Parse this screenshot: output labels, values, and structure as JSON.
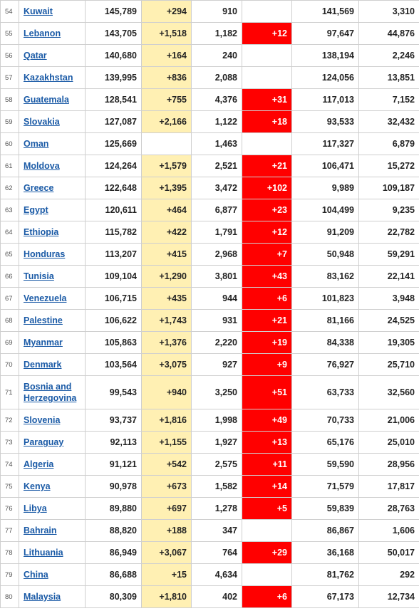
{
  "table": {
    "rows": [
      {
        "num": "54",
        "country": "Kuwait",
        "total": "145,789",
        "new_cases": "+294",
        "deaths": "910",
        "new_deaths": "",
        "recovered": "141,569",
        "active": "3,310"
      },
      {
        "num": "55",
        "country": "Lebanon",
        "total": "143,705",
        "new_cases": "+1,518",
        "deaths": "1,182",
        "new_deaths": "+12",
        "recovered": "97,647",
        "active": "44,876"
      },
      {
        "num": "56",
        "country": "Qatar",
        "total": "140,680",
        "new_cases": "+164",
        "deaths": "240",
        "new_deaths": "",
        "recovered": "138,194",
        "active": "2,246"
      },
      {
        "num": "57",
        "country": "Kazakhstan",
        "total": "139,995",
        "new_cases": "+836",
        "deaths": "2,088",
        "new_deaths": "",
        "recovered": "124,056",
        "active": "13,851"
      },
      {
        "num": "58",
        "country": "Guatemala",
        "total": "128,541",
        "new_cases": "+755",
        "deaths": "4,376",
        "new_deaths": "+31",
        "recovered": "117,013",
        "active": "7,152"
      },
      {
        "num": "59",
        "country": "Slovakia",
        "total": "127,087",
        "new_cases": "+2,166",
        "deaths": "1,122",
        "new_deaths": "+18",
        "recovered": "93,533",
        "active": "32,432"
      },
      {
        "num": "60",
        "country": "Oman",
        "total": "125,669",
        "new_cases": "",
        "deaths": "1,463",
        "new_deaths": "",
        "recovered": "117,327",
        "active": "6,879"
      },
      {
        "num": "61",
        "country": "Moldova",
        "total": "124,264",
        "new_cases": "+1,579",
        "deaths": "2,521",
        "new_deaths": "+21",
        "recovered": "106,471",
        "active": "15,272"
      },
      {
        "num": "62",
        "country": "Greece",
        "total": "122,648",
        "new_cases": "+1,395",
        "deaths": "3,472",
        "new_deaths": "+102",
        "recovered": "9,989",
        "active": "109,187"
      },
      {
        "num": "63",
        "country": "Egypt",
        "total": "120,611",
        "new_cases": "+464",
        "deaths": "6,877",
        "new_deaths": "+23",
        "recovered": "104,499",
        "active": "9,235"
      },
      {
        "num": "64",
        "country": "Ethiopia",
        "total": "115,782",
        "new_cases": "+422",
        "deaths": "1,791",
        "new_deaths": "+12",
        "recovered": "91,209",
        "active": "22,782"
      },
      {
        "num": "65",
        "country": "Honduras",
        "total": "113,207",
        "new_cases": "+415",
        "deaths": "2,968",
        "new_deaths": "+7",
        "recovered": "50,948",
        "active": "59,291"
      },
      {
        "num": "66",
        "country": "Tunisia",
        "total": "109,104",
        "new_cases": "+1,290",
        "deaths": "3,801",
        "new_deaths": "+43",
        "recovered": "83,162",
        "active": "22,141"
      },
      {
        "num": "67",
        "country": "Venezuela",
        "total": "106,715",
        "new_cases": "+435",
        "deaths": "944",
        "new_deaths": "+6",
        "recovered": "101,823",
        "active": "3,948"
      },
      {
        "num": "68",
        "country": "Palestine",
        "total": "106,622",
        "new_cases": "+1,743",
        "deaths": "931",
        "new_deaths": "+21",
        "recovered": "81,166",
        "active": "24,525"
      },
      {
        "num": "69",
        "country": "Myanmar",
        "total": "105,863",
        "new_cases": "+1,376",
        "deaths": "2,220",
        "new_deaths": "+19",
        "recovered": "84,338",
        "active": "19,305"
      },
      {
        "num": "70",
        "country": "Denmark",
        "total": "103,564",
        "new_cases": "+3,075",
        "deaths": "927",
        "new_deaths": "+9",
        "recovered": "76,927",
        "active": "25,710"
      },
      {
        "num": "71",
        "country": "Bosnia and Herzegovina",
        "total": "99,543",
        "new_cases": "+940",
        "deaths": "3,250",
        "new_deaths": "+51",
        "recovered": "63,733",
        "active": "32,560"
      },
      {
        "num": "72",
        "country": "Slovenia",
        "total": "93,737",
        "new_cases": "+1,816",
        "deaths": "1,998",
        "new_deaths": "+49",
        "recovered": "70,733",
        "active": "21,006"
      },
      {
        "num": "73",
        "country": "Paraguay",
        "total": "92,113",
        "new_cases": "+1,155",
        "deaths": "1,927",
        "new_deaths": "+13",
        "recovered": "65,176",
        "active": "25,010"
      },
      {
        "num": "74",
        "country": "Algeria",
        "total": "91,121",
        "new_cases": "+542",
        "deaths": "2,575",
        "new_deaths": "+11",
        "recovered": "59,590",
        "active": "28,956"
      },
      {
        "num": "75",
        "country": "Kenya",
        "total": "90,978",
        "new_cases": "+673",
        "deaths": "1,582",
        "new_deaths": "+14",
        "recovered": "71,579",
        "active": "17,817"
      },
      {
        "num": "76",
        "country": "Libya",
        "total": "89,880",
        "new_cases": "+697",
        "deaths": "1,278",
        "new_deaths": "+5",
        "recovered": "59,839",
        "active": "28,763"
      },
      {
        "num": "77",
        "country": "Bahrain",
        "total": "88,820",
        "new_cases": "+188",
        "deaths": "347",
        "new_deaths": "",
        "recovered": "86,867",
        "active": "1,606"
      },
      {
        "num": "78",
        "country": "Lithuania",
        "total": "86,949",
        "new_cases": "+3,067",
        "deaths": "764",
        "new_deaths": "+29",
        "recovered": "36,168",
        "active": "50,017"
      },
      {
        "num": "79",
        "country": "China",
        "total": "86,688",
        "new_cases": "+15",
        "deaths": "4,634",
        "new_deaths": "",
        "recovered": "81,762",
        "active": "292"
      },
      {
        "num": "80",
        "country": "Malaysia",
        "total": "80,309",
        "new_cases": "+1,810",
        "deaths": "402",
        "new_deaths": "+6",
        "recovered": "67,173",
        "active": "12,734"
      }
    ]
  },
  "colors": {
    "link": "#1a5aa6",
    "new_cases_highlight": "#fff0b3",
    "new_deaths_highlight": "#ff0000"
  }
}
